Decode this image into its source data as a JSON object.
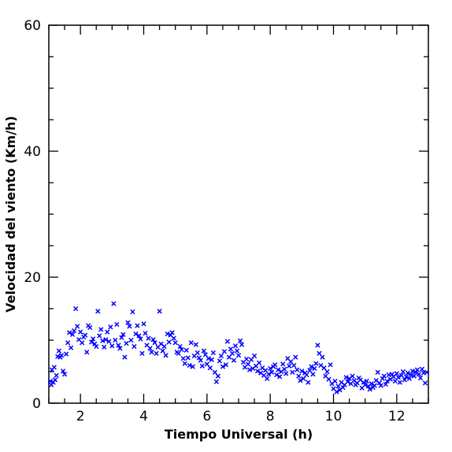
{
  "chart_data": {
    "type": "scatter",
    "title": "",
    "xlabel": "Tiempo Universal (h)",
    "ylabel": "Velocidad del viento (Km/h)",
    "xlim": [
      1,
      13
    ],
    "ylim": [
      0,
      60
    ],
    "x_ticks": [
      2,
      4,
      6,
      8,
      10,
      12
    ],
    "y_ticks": [
      0,
      20,
      40,
      60
    ],
    "x_minor_step": 0.5,
    "y_minor_step": 5,
    "marker": "x",
    "color": "#0000ff",
    "grid": false,
    "series": [
      {
        "points": [
          [
            1.05,
            3.5
          ],
          [
            1.08,
            2.9
          ],
          [
            1.1,
            5.3
          ],
          [
            1.14,
            3.3
          ],
          [
            1.17,
            5.7
          ],
          [
            1.2,
            3.7
          ],
          [
            1.24,
            4.4
          ],
          [
            1.28,
            7.4
          ],
          [
            1.32,
            8.3
          ],
          [
            1.36,
            7.3
          ],
          [
            1.4,
            7.6
          ],
          [
            1.45,
            5.1
          ],
          [
            1.5,
            4.6
          ],
          [
            1.55,
            7.8
          ],
          [
            1.6,
            9.6
          ],
          [
            1.65,
            11.2
          ],
          [
            1.7,
            8.8
          ],
          [
            1.75,
            10.9
          ],
          [
            1.8,
            11.5
          ],
          [
            1.85,
            15.0
          ],
          [
            1.9,
            12.2
          ],
          [
            1.95,
            10.1
          ],
          [
            2.0,
            11.3
          ],
          [
            2.05,
            9.6
          ],
          [
            2.1,
            10.5
          ],
          [
            2.15,
            10.8
          ],
          [
            2.2,
            8.1
          ],
          [
            2.25,
            12.3
          ],
          [
            2.3,
            12.0
          ],
          [
            2.35,
            9.7
          ],
          [
            2.4,
            10.2
          ],
          [
            2.45,
            9.4
          ],
          [
            2.5,
            9.0
          ],
          [
            2.55,
            14.6
          ],
          [
            2.6,
            10.7
          ],
          [
            2.65,
            11.7
          ],
          [
            2.7,
            9.9
          ],
          [
            2.75,
            8.9
          ],
          [
            2.8,
            10.1
          ],
          [
            2.85,
            11.3
          ],
          [
            2.9,
            9.8
          ],
          [
            2.95,
            12.1
          ],
          [
            3.0,
            9.1
          ],
          [
            3.05,
            15.8
          ],
          [
            3.1,
            10.0
          ],
          [
            3.15,
            12.5
          ],
          [
            3.2,
            9.2
          ],
          [
            3.25,
            8.7
          ],
          [
            3.3,
            10.4
          ],
          [
            3.35,
            10.9
          ],
          [
            3.4,
            7.3
          ],
          [
            3.45,
            9.5
          ],
          [
            3.5,
            12.8
          ],
          [
            3.55,
            12.2
          ],
          [
            3.6,
            10.0
          ],
          [
            3.65,
            14.5
          ],
          [
            3.7,
            9.0
          ],
          [
            3.75,
            11.0
          ],
          [
            3.8,
            12.3
          ],
          [
            3.85,
            10.7
          ],
          [
            3.9,
            10.2
          ],
          [
            3.95,
            7.9
          ],
          [
            4.0,
            12.6
          ],
          [
            4.05,
            11.1
          ],
          [
            4.1,
            9.2
          ],
          [
            4.15,
            10.3
          ],
          [
            4.2,
            8.7
          ],
          [
            4.25,
            8.1
          ],
          [
            4.3,
            10.1
          ],
          [
            4.35,
            9.6
          ],
          [
            4.4,
            7.9
          ],
          [
            4.45,
            8.9
          ],
          [
            4.5,
            14.6
          ],
          [
            4.55,
            9.4
          ],
          [
            4.6,
            8.3
          ],
          [
            4.65,
            9.0
          ],
          [
            4.7,
            7.6
          ],
          [
            4.75,
            11.0
          ],
          [
            4.8,
            9.7
          ],
          [
            4.85,
            10.8
          ],
          [
            4.9,
            11.2
          ],
          [
            4.95,
            10.3
          ],
          [
            5.0,
            9.6
          ],
          [
            5.05,
            8.1
          ],
          [
            5.1,
            7.9
          ],
          [
            5.15,
            9.0
          ],
          [
            5.2,
            8.5
          ],
          [
            5.25,
            7.1
          ],
          [
            5.3,
            6.3
          ],
          [
            5.35,
            8.4
          ],
          [
            5.4,
            7.2
          ],
          [
            5.45,
            6.0
          ],
          [
            5.5,
            9.6
          ],
          [
            5.55,
            5.8
          ],
          [
            5.6,
            7.5
          ],
          [
            5.65,
            9.3
          ],
          [
            5.7,
            8.0
          ],
          [
            5.75,
            7.2
          ],
          [
            5.8,
            6.8
          ],
          [
            5.85,
            5.9
          ],
          [
            5.9,
            8.3
          ],
          [
            5.95,
            7.7
          ],
          [
            6.0,
            6.2
          ],
          [
            6.05,
            7.1
          ],
          [
            6.1,
            5.6
          ],
          [
            6.15,
            6.9
          ],
          [
            6.2,
            8.0
          ],
          [
            6.25,
            4.9
          ],
          [
            6.3,
            3.4
          ],
          [
            6.35,
            4.3
          ],
          [
            6.4,
            6.7
          ],
          [
            6.45,
            7.5
          ],
          [
            6.5,
            5.8
          ],
          [
            6.55,
            8.2
          ],
          [
            6.6,
            6.1
          ],
          [
            6.65,
            9.8
          ],
          [
            6.7,
            7.3
          ],
          [
            6.75,
            8.6
          ],
          [
            6.8,
            7.9
          ],
          [
            6.85,
            6.8
          ],
          [
            6.9,
            9.1
          ],
          [
            6.95,
            8.3
          ],
          [
            7.0,
            7.6
          ],
          [
            7.05,
            9.9
          ],
          [
            7.1,
            9.3
          ],
          [
            7.15,
            6.5
          ],
          [
            7.2,
            5.7
          ],
          [
            7.25,
            7.0
          ],
          [
            7.3,
            6.2
          ],
          [
            7.35,
            5.3
          ],
          [
            7.4,
            6.9
          ],
          [
            7.45,
            5.5
          ],
          [
            7.5,
            7.5
          ],
          [
            7.55,
            5.9
          ],
          [
            7.6,
            5.1
          ],
          [
            7.65,
            6.4
          ],
          [
            7.7,
            4.8
          ],
          [
            7.75,
            5.6
          ],
          [
            7.8,
            4.4
          ],
          [
            7.85,
            5.2
          ],
          [
            7.9,
            3.9
          ],
          [
            7.95,
            4.6
          ],
          [
            8.0,
            5.5
          ],
          [
            8.05,
            4.9
          ],
          [
            8.1,
            5.8
          ],
          [
            8.15,
            6.1
          ],
          [
            8.2,
            4.5
          ],
          [
            8.25,
            5.3
          ],
          [
            8.3,
            4.2
          ],
          [
            8.35,
            5.0
          ],
          [
            8.4,
            6.2
          ],
          [
            8.45,
            5.4
          ],
          [
            8.5,
            4.7
          ],
          [
            8.55,
            7.1
          ],
          [
            8.6,
            5.9
          ],
          [
            8.65,
            6.6
          ],
          [
            8.7,
            4.9
          ],
          [
            8.75,
            6.0
          ],
          [
            8.8,
            7.3
          ],
          [
            8.85,
            5.3
          ],
          [
            8.9,
            4.3
          ],
          [
            8.95,
            3.6
          ],
          [
            9.0,
            5.1
          ],
          [
            9.05,
            3.9
          ],
          [
            9.1,
            4.8
          ],
          [
            9.15,
            4.5
          ],
          [
            9.2,
            3.3
          ],
          [
            9.25,
            5.2
          ],
          [
            9.3,
            5.8
          ],
          [
            9.35,
            4.6
          ],
          [
            9.4,
            5.5
          ],
          [
            9.45,
            6.3
          ],
          [
            9.5,
            9.2
          ],
          [
            9.55,
            7.9
          ],
          [
            9.6,
            6.0
          ],
          [
            9.65,
            7.3
          ],
          [
            9.7,
            5.6
          ],
          [
            9.75,
            4.3
          ],
          [
            9.8,
            5.0
          ],
          [
            9.85,
            3.8
          ],
          [
            9.9,
            6.1
          ],
          [
            9.95,
            3.1
          ],
          [
            10.0,
            2.3
          ],
          [
            10.05,
            3.5
          ],
          [
            10.1,
            1.8
          ],
          [
            10.15,
            2.7
          ],
          [
            10.2,
            2.1
          ],
          [
            10.25,
            3.3
          ],
          [
            10.3,
            2.5
          ],
          [
            10.35,
            2.9
          ],
          [
            10.4,
            4.1
          ],
          [
            10.45,
            3.4
          ],
          [
            10.5,
            3.9
          ],
          [
            10.55,
            3.1
          ],
          [
            10.6,
            4.3
          ],
          [
            10.65,
            3.6
          ],
          [
            10.7,
            2.9
          ],
          [
            10.75,
            3.2
          ],
          [
            10.8,
            4.0
          ],
          [
            10.85,
            3.7
          ],
          [
            10.9,
            2.4
          ],
          [
            10.95,
            3.3
          ],
          [
            11.0,
            2.9
          ],
          [
            11.05,
            3.5
          ],
          [
            11.1,
            2.7
          ],
          [
            11.15,
            2.2
          ],
          [
            11.2,
            3.1
          ],
          [
            11.25,
            2.5
          ],
          [
            11.3,
            2.8
          ],
          [
            11.35,
            3.6
          ],
          [
            11.4,
            4.9
          ],
          [
            11.45,
            3.2
          ],
          [
            11.5,
            2.8
          ],
          [
            11.55,
            3.9
          ],
          [
            11.6,
            4.3
          ],
          [
            11.65,
            3.0
          ],
          [
            11.7,
            3.5
          ],
          [
            11.75,
            4.5
          ],
          [
            11.8,
            3.8
          ],
          [
            11.85,
            4.6
          ],
          [
            11.9,
            4.2
          ],
          [
            11.95,
            3.5
          ],
          [
            12.0,
            4.7
          ],
          [
            12.05,
            4.1
          ],
          [
            12.1,
            3.3
          ],
          [
            12.15,
            4.4
          ],
          [
            12.2,
            5.0
          ],
          [
            12.25,
            3.7
          ],
          [
            12.3,
            4.2
          ],
          [
            12.35,
            4.8
          ],
          [
            12.4,
            3.9
          ],
          [
            12.45,
            4.5
          ],
          [
            12.5,
            5.1
          ],
          [
            12.55,
            4.3
          ],
          [
            12.6,
            4.9
          ],
          [
            12.65,
            5.3
          ],
          [
            12.7,
            4.6
          ],
          [
            12.75,
            4.0
          ],
          [
            12.8,
            5.4
          ],
          [
            12.85,
            4.8
          ],
          [
            12.9,
            3.2
          ],
          [
            12.95,
            4.9
          ]
        ]
      }
    ]
  }
}
